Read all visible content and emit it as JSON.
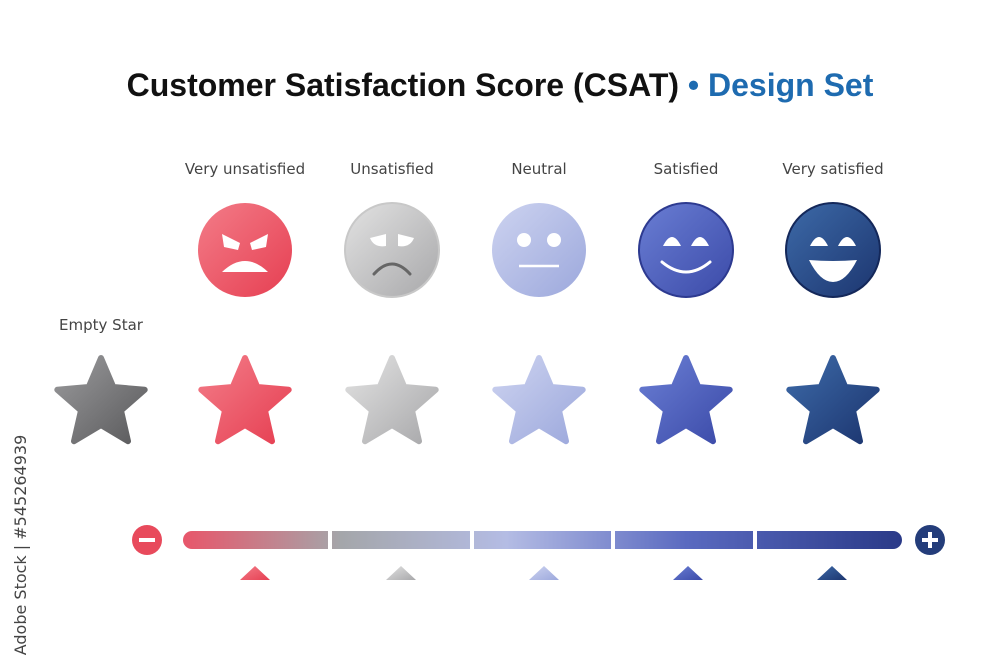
{
  "header": {
    "title": "Customer Satisfaction Score (CSAT)",
    "separator": "•",
    "subtitle": "Design Set"
  },
  "ratings": [
    {
      "label": "Very unsatisfied"
    },
    {
      "label": "Unsatisfied"
    },
    {
      "label": "Neutral"
    },
    {
      "label": "Satisfied"
    },
    {
      "label": "Very satisfied"
    }
  ],
  "empty_star": {
    "label": "Empty Star"
  },
  "watermark": "Adobe Stock | #545264939"
}
